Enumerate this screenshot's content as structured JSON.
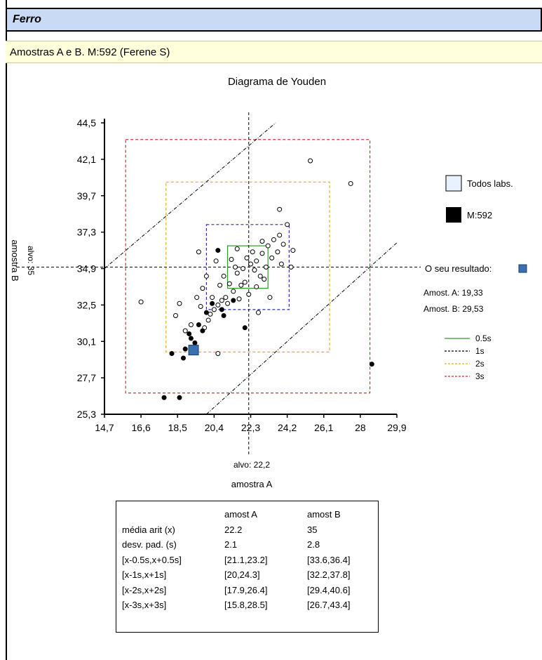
{
  "header": {
    "title": "Ferro"
  },
  "subheader": {
    "text": "Amostras A e B. M:592 (Ferene S)"
  },
  "colors": {
    "title_bg": "#c9daf5",
    "subtitle_bg": "#ffffdc",
    "band_05s": "#2e9b2e",
    "band_1s": "#2b2bb8",
    "band_2s": "#e0b020",
    "band_3s": "#cc3333",
    "own_result": "#3a6fb0"
  },
  "legend": {
    "all_labs": "Todos labs.",
    "lab": "M:592",
    "own_result_label": "O seu resultado:",
    "amost_a": "Amost. A: 19,33",
    "amost_b": "Amost. B: 29,53",
    "bands": [
      {
        "label": "0.5s",
        "color": "#2e9b2e",
        "dash": "solid"
      },
      {
        "label": "1s",
        "color": "#000000",
        "dash": "dashed"
      },
      {
        "label": "2s",
        "color": "#e0b020",
        "dash": "dashed"
      },
      {
        "label": "3s",
        "color": "#cc3333",
        "dash": "dashed"
      }
    ]
  },
  "chart_data": {
    "type": "scatter",
    "title": "Diagrama de Youden",
    "xlabel": "amostra A",
    "ylabel": "amostra B",
    "xlim": [
      14.7,
      29.9
    ],
    "ylim": [
      25.3,
      44.5
    ],
    "x_ticks": [
      "14,7",
      "16,6",
      "18,5",
      "20,4",
      "22,3",
      "24,2",
      "26,1",
      "28",
      "29,9"
    ],
    "y_ticks": [
      "44,5",
      "42,1",
      "39,7",
      "37,3",
      "34,9",
      "32,5",
      "30,1",
      "27,7",
      "25,3"
    ],
    "target_x_label": "alvo: 22,2",
    "target_y_label": "alvo: 35",
    "target": {
      "x": 22.2,
      "y": 35
    },
    "boxes": [
      {
        "name": "0.5s",
        "x": [
          21.1,
          23.2
        ],
        "y": [
          33.6,
          36.4
        ]
      },
      {
        "name": "1s",
        "x": [
          20,
          24.3
        ],
        "y": [
          32.2,
          37.8
        ]
      },
      {
        "name": "2s",
        "x": [
          17.9,
          26.4
        ],
        "y": [
          29.4,
          40.6
        ]
      },
      {
        "name": "3s",
        "x": [
          15.8,
          28.5
        ],
        "y": [
          26.7,
          43.4
        ]
      }
    ],
    "own_result": {
      "x": 19.33,
      "y": 29.53
    },
    "series": [
      {
        "name": "Todos labs.",
        "points": [
          [
            25.4,
            42.0
          ],
          [
            27.5,
            40.5
          ],
          [
            16.6,
            32.7
          ],
          [
            18.4,
            31.8
          ],
          [
            23.8,
            38.8
          ],
          [
            24.2,
            37.8
          ],
          [
            24.5,
            36.1
          ],
          [
            19.6,
            36.0
          ],
          [
            20.6,
            29.3
          ],
          [
            19.5,
            33.0
          ],
          [
            20.0,
            34.4
          ],
          [
            19.8,
            33.6
          ],
          [
            21.2,
            33.9
          ],
          [
            21.6,
            34.6
          ],
          [
            22.3,
            35.2
          ],
          [
            22.6,
            35.4
          ],
          [
            22.9,
            35.9
          ],
          [
            23.2,
            36.4
          ],
          [
            23.5,
            36.8
          ],
          [
            23.8,
            37.1
          ],
          [
            21.9,
            34.9
          ],
          [
            22.1,
            35.6
          ],
          [
            21.4,
            33.4
          ],
          [
            21.0,
            33.0
          ],
          [
            20.8,
            32.8
          ],
          [
            20.6,
            32.5
          ],
          [
            20.4,
            32.2
          ],
          [
            20.2,
            31.9
          ],
          [
            21.8,
            33.8
          ],
          [
            22.5,
            34.8
          ],
          [
            22.8,
            34.4
          ],
          [
            23.1,
            35.0
          ],
          [
            23.4,
            35.6
          ],
          [
            23.7,
            36.0
          ],
          [
            22.0,
            34.0
          ],
          [
            21.5,
            35.0
          ],
          [
            20.9,
            34.4
          ],
          [
            20.7,
            33.8
          ],
          [
            20.3,
            33.0
          ],
          [
            21.1,
            32.6
          ],
          [
            21.7,
            32.9
          ],
          [
            22.2,
            33.2
          ],
          [
            22.6,
            33.7
          ],
          [
            23.0,
            34.2
          ],
          [
            23.9,
            35.2
          ],
          [
            24.4,
            35.0
          ],
          [
            22.4,
            36.0
          ],
          [
            21.3,
            35.5
          ],
          [
            19.2,
            31.2
          ],
          [
            18.9,
            30.8
          ],
          [
            19.7,
            32.4
          ],
          [
            20.1,
            31.5
          ],
          [
            22.7,
            32.0
          ],
          [
            23.3,
            33.0
          ],
          [
            22.9,
            36.7
          ],
          [
            24.0,
            36.5
          ],
          [
            21.6,
            36.2
          ],
          [
            20.5,
            35.4
          ],
          [
            19.9,
            31.0
          ],
          [
            18.6,
            32.6
          ]
        ]
      },
      {
        "name": "M:592",
        "points": [
          [
            17.8,
            26.4
          ],
          [
            18.6,
            26.4
          ],
          [
            28.6,
            28.6
          ],
          [
            18.2,
            29.3
          ],
          [
            18.8,
            29.0
          ],
          [
            19.1,
            30.6
          ],
          [
            19.6,
            31.2
          ],
          [
            20.0,
            32.0
          ],
          [
            20.3,
            32.6
          ],
          [
            20.8,
            32.2
          ],
          [
            21.4,
            32.8
          ],
          [
            20.6,
            36.1
          ],
          [
            19.4,
            30.0
          ],
          [
            18.9,
            29.6
          ],
          [
            22.0,
            31.0
          ],
          [
            20.9,
            31.8
          ],
          [
            19.2,
            30.3
          ],
          [
            19.8,
            30.8
          ]
        ]
      }
    ]
  },
  "table": {
    "headers": [
      "",
      "amost A",
      "amost B"
    ],
    "rows": [
      [
        "média arit (x)",
        "22.2",
        "35"
      ],
      [
        "desv. pad. (s)",
        "2.1",
        "2.8"
      ],
      [
        "[x-0.5s,x+0.5s]",
        "[21.1,23.2]",
        "[33.6,36.4]"
      ],
      [
        "[x-1s,x+1s]",
        "[20,24.3]",
        "[32.2,37.8]"
      ],
      [
        "[x-2s,x+2s]",
        "[17.9,26.4]",
        "[29.4,40.6]"
      ],
      [
        "[x-3s,x+3s]",
        "[15.8,28.5]",
        "[26.7,43.4]"
      ]
    ]
  }
}
